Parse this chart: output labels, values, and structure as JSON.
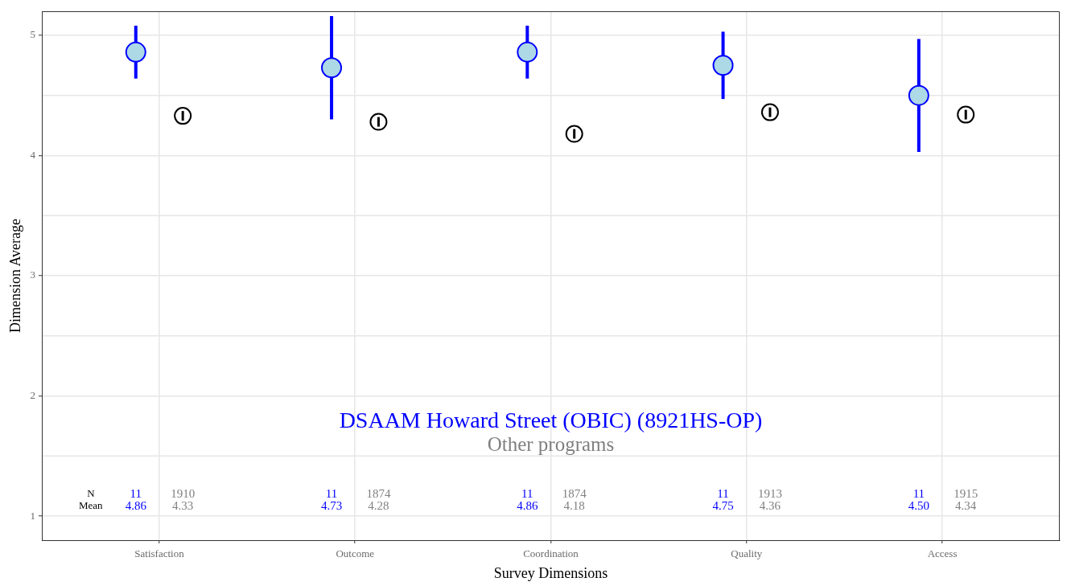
{
  "chart_data": {
    "type": "scatter",
    "xlabel": "Survey Dimensions",
    "ylabel": "Dimension Average",
    "categories": [
      "Satisfaction",
      "Outcome",
      "Coordination",
      "Quality",
      "Access"
    ],
    "series": [
      {
        "name": "DSAAM Howard Street (OBIC) (8921HS-OP)",
        "color": "#0000ff",
        "values": [
          4.86,
          4.73,
          4.86,
          4.75,
          4.5
        ],
        "errors": [
          0.22,
          0.43,
          0.22,
          0.28,
          0.47
        ]
      },
      {
        "color": "#000000",
        "values": [
          4.33,
          4.28,
          4.18,
          4.36,
          4.34
        ],
        "errors": [
          0.04,
          0.04,
          0.04,
          0.04,
          0.04
        ]
      }
    ],
    "ylim": [
      0.8,
      5.2
    ],
    "yticks": [
      1,
      2,
      3,
      4,
      5
    ],
    "grid": true,
    "legend": "bottom",
    "marker": "circle",
    "annotations": [
      "Other programs",
      "N",
      "11",
      "1910",
      "11",
      "1874",
      "11",
      "1874",
      "11",
      "1913",
      "11",
      "1915",
      "Mean",
      "4.86",
      "4.33",
      "4.73",
      "4.28",
      "4.86",
      "4.18",
      "4.75",
      "4.36",
      "4.50",
      "4.34"
    ]
  }
}
